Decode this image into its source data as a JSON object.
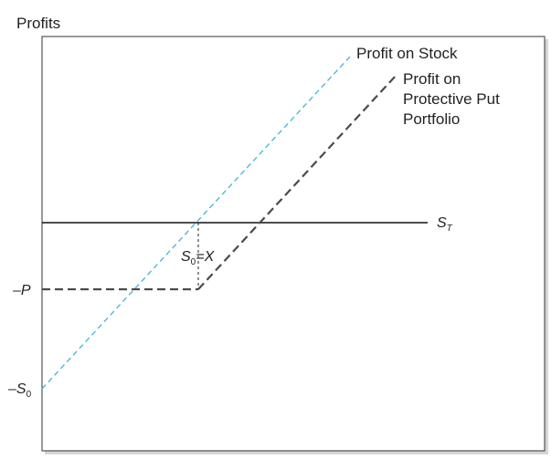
{
  "axis": {
    "y_title": "Profits",
    "x_label_main": "S",
    "x_label_sub": "T"
  },
  "curves": {
    "stock_label": "Profit on Stock",
    "protective_put_label_lines": [
      "Profit on",
      "Protective Put",
      "Portfolio"
    ]
  },
  "markers": {
    "neg_p": "–P",
    "neg_s0_prefix": "–S",
    "neg_s0_sub": "0",
    "s0_main": "S",
    "s0_sub": "0",
    "s0_eq": "=X"
  },
  "colors": {
    "stock_line": "#3fb6d8",
    "protective_put_line": "#4a4a4a",
    "axis": "#111111",
    "frame": "#333333",
    "shadow": "#cfcfcf"
  }
}
